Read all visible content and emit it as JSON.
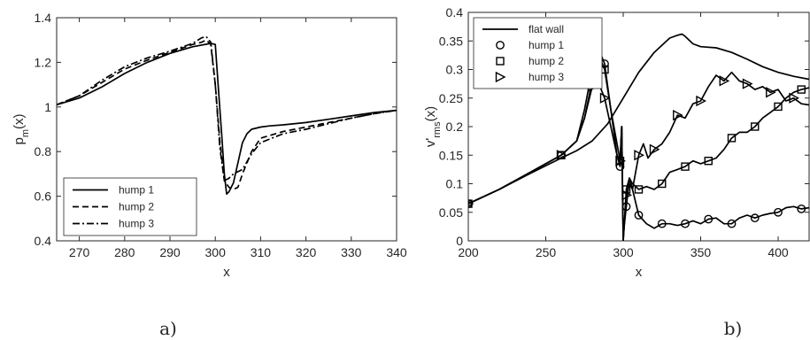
{
  "panel_labels": [
    "a)",
    "b)"
  ],
  "chart_data": [
    {
      "type": "line",
      "panel": "a)",
      "xlabel": "x",
      "ylabel": "p_m(x)",
      "xlim": [
        265,
        340
      ],
      "ylim": [
        0.4,
        1.4
      ],
      "xticks": [
        270,
        280,
        290,
        300,
        310,
        320,
        330,
        340
      ],
      "yticks": [
        0.4,
        0.6,
        0.8,
        1,
        1.2,
        1.4
      ],
      "ytick_labels": [
        "0.4",
        "0.6",
        "0.8",
        "1",
        "1.2",
        "1.4"
      ],
      "grid": false,
      "legend_position": "bottom-left",
      "series": [
        {
          "name": "hump 1",
          "style": "solid",
          "x": [
            265,
            270,
            275,
            280,
            285,
            290,
            295,
            299,
            300,
            300.8,
            301.5,
            302,
            302.5,
            303,
            304,
            305,
            306,
            307,
            308,
            310,
            312,
            315,
            320,
            325,
            330,
            335,
            340
          ],
          "y": [
            1.01,
            1.04,
            1.09,
            1.15,
            1.2,
            1.24,
            1.27,
            1.285,
            1.28,
            1.05,
            0.85,
            0.7,
            0.61,
            0.62,
            0.66,
            0.75,
            0.84,
            0.88,
            0.9,
            0.91,
            0.915,
            0.92,
            0.93,
            0.945,
            0.96,
            0.975,
            0.985
          ]
        },
        {
          "name": "hump 2",
          "style": "dashed",
          "x": [
            265,
            270,
            275,
            280,
            285,
            290,
            295,
            297,
            298,
            299,
            300,
            301,
            302,
            303,
            304,
            305,
            306,
            308,
            310,
            315,
            320,
            325,
            330,
            335,
            340
          ],
          "y": [
            1.01,
            1.05,
            1.11,
            1.17,
            1.21,
            1.245,
            1.28,
            1.29,
            1.3,
            1.28,
            1.1,
            0.85,
            0.67,
            0.64,
            0.63,
            0.64,
            0.7,
            0.8,
            0.86,
            0.89,
            0.91,
            0.93,
            0.95,
            0.97,
            0.985
          ]
        },
        {
          "name": "hump 3",
          "style": "dashdot",
          "x": [
            265,
            270,
            275,
            280,
            285,
            290,
            295,
            297,
            298,
            299,
            300,
            301,
            302,
            303,
            304,
            305,
            306,
            308,
            310,
            315,
            320,
            325,
            330,
            335,
            340
          ],
          "y": [
            1.01,
            1.05,
            1.12,
            1.18,
            1.22,
            1.25,
            1.285,
            1.31,
            1.315,
            1.29,
            1.1,
            0.82,
            0.67,
            0.68,
            0.7,
            0.71,
            0.72,
            0.79,
            0.84,
            0.88,
            0.9,
            0.925,
            0.95,
            0.97,
            0.985
          ]
        }
      ]
    },
    {
      "type": "line",
      "panel": "b)",
      "xlabel": "x",
      "ylabel": "v'_rms(x)",
      "xlim": [
        200,
        420
      ],
      "ylim": [
        0,
        0.4
      ],
      "xticks": [
        200,
        250,
        300,
        350,
        400
      ],
      "yticks": [
        0,
        0.05,
        0.1,
        0.15,
        0.2,
        0.25,
        0.3,
        0.35,
        0.4
      ],
      "ytick_labels": [
        "0",
        "0.05",
        "0.1",
        "0.15",
        "0.2",
        "0.25",
        "0.3",
        "0.35",
        "0.4"
      ],
      "grid": false,
      "legend_position": "top-left",
      "series": [
        {
          "name": "flat wall",
          "marker": "none",
          "x": [
            200,
            220,
            240,
            260,
            270,
            280,
            290,
            300,
            310,
            320,
            330,
            335,
            338,
            340,
            345,
            350,
            360,
            370,
            380,
            390,
            400,
            410,
            420
          ],
          "y": [
            0.065,
            0.09,
            0.118,
            0.145,
            0.158,
            0.175,
            0.205,
            0.25,
            0.295,
            0.33,
            0.355,
            0.36,
            0.362,
            0.358,
            0.345,
            0.34,
            0.338,
            0.33,
            0.318,
            0.305,
            0.295,
            0.288,
            0.283
          ]
        },
        {
          "name": "hump 1",
          "marker": "circle",
          "x": [
            200,
            220,
            240,
            260,
            270,
            275,
            280,
            283,
            285,
            288,
            292,
            296,
            298,
            299,
            300,
            302,
            304,
            306,
            310,
            315,
            320,
            325,
            330,
            335,
            340,
            345,
            350,
            355,
            360,
            365,
            370,
            375,
            380,
            385,
            390,
            395,
            400,
            405,
            410,
            415,
            420
          ],
          "y": [
            0.065,
            0.09,
            0.12,
            0.15,
            0.175,
            0.215,
            0.28,
            0.32,
            0.33,
            0.31,
            0.23,
            0.15,
            0.13,
            0.2,
            0.01,
            0.06,
            0.11,
            0.09,
            0.045,
            0.03,
            0.022,
            0.03,
            0.03,
            0.027,
            0.03,
            0.035,
            0.03,
            0.038,
            0.04,
            0.03,
            0.03,
            0.04,
            0.045,
            0.04,
            0.045,
            0.048,
            0.05,
            0.058,
            0.06,
            0.056,
            0.058
          ]
        },
        {
          "name": "hump 2",
          "marker": "square",
          "x": [
            200,
            220,
            240,
            260,
            270,
            275,
            280,
            283,
            285,
            288,
            292,
            296,
            298,
            299,
            300,
            302,
            304,
            306,
            310,
            315,
            320,
            325,
            330,
            335,
            340,
            345,
            350,
            355,
            360,
            365,
            370,
            375,
            380,
            385,
            390,
            395,
            400,
            405,
            410,
            415,
            420
          ],
          "y": [
            0.065,
            0.09,
            0.12,
            0.15,
            0.175,
            0.23,
            0.3,
            0.325,
            0.32,
            0.3,
            0.23,
            0.17,
            0.14,
            0.2,
            0.0,
            0.09,
            0.11,
            0.1,
            0.09,
            0.095,
            0.09,
            0.1,
            0.12,
            0.125,
            0.13,
            0.14,
            0.135,
            0.14,
            0.145,
            0.16,
            0.18,
            0.19,
            0.19,
            0.2,
            0.215,
            0.225,
            0.235,
            0.25,
            0.26,
            0.265,
            0.268
          ]
        },
        {
          "name": "hump 3",
          "marker": "triangle-right",
          "x": [
            200,
            220,
            240,
            260,
            270,
            275,
            280,
            283,
            285,
            288,
            292,
            296,
            298,
            299,
            300,
            302,
            304,
            306,
            310,
            313,
            316,
            320,
            325,
            330,
            335,
            340,
            345,
            350,
            355,
            360,
            365,
            370,
            375,
            380,
            385,
            390,
            395,
            400,
            405,
            410,
            415,
            420
          ],
          "y": [
            0.065,
            0.09,
            0.12,
            0.15,
            0.175,
            0.215,
            0.27,
            0.28,
            0.27,
            0.25,
            0.2,
            0.15,
            0.14,
            0.2,
            0.0,
            0.08,
            0.1,
            0.09,
            0.15,
            0.17,
            0.145,
            0.16,
            0.17,
            0.19,
            0.22,
            0.215,
            0.24,
            0.245,
            0.27,
            0.29,
            0.28,
            0.295,
            0.28,
            0.275,
            0.265,
            0.27,
            0.26,
            0.265,
            0.245,
            0.25,
            0.24,
            0.238
          ]
        }
      ]
    }
  ]
}
